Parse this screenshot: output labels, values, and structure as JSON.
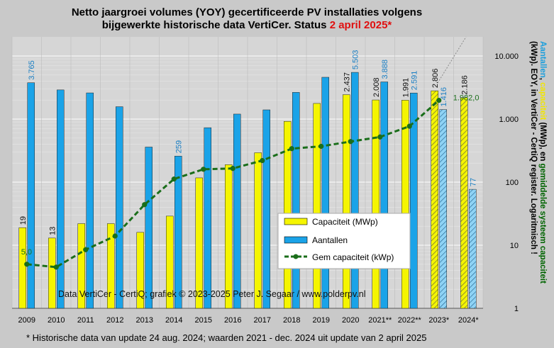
{
  "chart_data": {
    "type": "bar",
    "title_line1": "Netto jaargroei volumes (YOY) gecertificeerde  PV installaties volgens",
    "title_line2_a": "bijgewerkte historische  data VertiCer. Status ",
    "title_line2_b": "2 april  2025*",
    "right_axis_label_parts": [
      {
        "text": "Aantallen",
        "color": "#1e9fdc"
      },
      {
        "text": ", ",
        "color": "#000000"
      },
      {
        "text": "capaciteit",
        "color": "#f2e600"
      },
      {
        "text": " (MWp), en ",
        "color": "#000000"
      },
      {
        "text": "gemiddelde systeem capaciteit",
        "color": "#006400"
      }
    ],
    "right_axis_label_line2": "(kWp). EOY, in VertiCer - CertiQ register. Logaritmisch !",
    "categories": [
      "2009",
      "2010",
      "2011",
      "2012",
      "2013",
      "2014",
      "2015",
      "2016",
      "2017",
      "2018",
      "2019",
      "2020",
      "2021**",
      "2022**",
      "2023*",
      "2024*"
    ],
    "scale": "log",
    "ylim": [
      1,
      10000
    ],
    "y_ticks": [
      1,
      10,
      100,
      1000,
      10000
    ],
    "y_tick_labels": [
      "1",
      "10",
      "100",
      "1.000",
      "10.000"
    ],
    "series": [
      {
        "name": "Capaciteit (MWp)",
        "color": "#f5f500",
        "values": [
          19,
          13,
          22,
          22,
          16,
          29,
          117,
          189,
          293,
          920,
          1770,
          2437,
          2008,
          1991,
          2806,
          2186
        ]
      },
      {
        "name": "Aantallen",
        "color": "#1aa3e8",
        "values": [
          3765,
          2900,
          2600,
          1570,
          360,
          259,
          730,
          1200,
          1400,
          2650,
          4600,
          5503,
          3888,
          2591,
          1416,
          77
        ]
      },
      {
        "name": "Gem capaciteit (kWp)",
        "color": "#1a6e1a",
        "values": [
          5.0,
          4.5,
          8.5,
          14,
          44,
          112,
          160,
          165,
          220,
          340,
          370,
          440,
          520,
          770,
          1982.0,
          null
        ]
      }
    ],
    "hatched_categories": [
      "2023*",
      "2024*"
    ],
    "bar_value_labels": [
      {
        "series": 0,
        "index": 0,
        "text": "19"
      },
      {
        "series": 0,
        "index": 1,
        "text": "13"
      },
      {
        "series": 0,
        "index": 11,
        "text": "2.437"
      },
      {
        "series": 0,
        "index": 12,
        "text": "2.008"
      },
      {
        "series": 0,
        "index": 13,
        "text": "1.991"
      },
      {
        "series": 0,
        "index": 14,
        "text": "2.806"
      },
      {
        "series": 0,
        "index": 15,
        "text": "2.186"
      },
      {
        "series": 1,
        "index": 0,
        "text": "3.765"
      },
      {
        "series": 1,
        "index": 5,
        "text": "259"
      },
      {
        "series": 1,
        "index": 11,
        "text": "5.503"
      },
      {
        "series": 1,
        "index": 12,
        "text": "3.888"
      },
      {
        "series": 1,
        "index": 13,
        "text": "2.591"
      },
      {
        "series": 1,
        "index": 14,
        "text": "1.416"
      },
      {
        "series": 1,
        "index": 15,
        "text": "77"
      }
    ],
    "line_value_labels": [
      {
        "index": 0,
        "text": "5,0"
      },
      {
        "index": 14,
        "text": "1.982,0"
      }
    ],
    "watermark": "Data VertiCer - CertiQ; grafiek © 2023-2025 Peter J. Segaar / www.polderpv.nl",
    "legend_position": "center-right",
    "grid": true
  },
  "footnote": "* Historische data van update 24 aug. 2024; waarden 2021 - dec. 2024 uit update van 2 april 2025"
}
